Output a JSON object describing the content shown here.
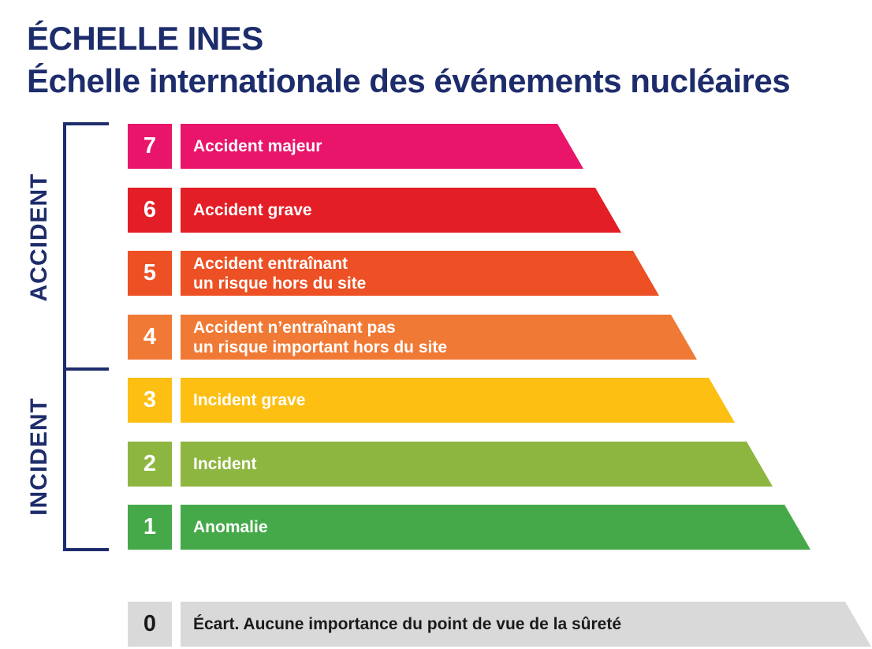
{
  "title": {
    "line1": "ÉCHELLE INES",
    "line2": "Échelle internationale des événements nucléaires"
  },
  "groups": {
    "accident": "ACCIDENT",
    "incident": "INCIDENT"
  },
  "levels": [
    {
      "number": "7",
      "line1": "Accident majeur",
      "line2": "",
      "color": "#e8156b"
    },
    {
      "number": "6",
      "line1": "Accident grave",
      "line2": "",
      "color": "#e41e26"
    },
    {
      "number": "5",
      "line1": "Accident entraînant",
      "line2": "un risque hors du site",
      "color": "#ec5024"
    },
    {
      "number": "4",
      "line1": "Accident n’entraînant pas",
      "line2": "un risque important hors du site",
      "color": "#f07a35"
    },
    {
      "number": "3",
      "line1": "Incident grave",
      "line2": "",
      "color": "#fcbf12"
    },
    {
      "number": "2",
      "line1": "Incident",
      "line2": "",
      "color": "#8db640"
    },
    {
      "number": "1",
      "line1": "Anomalie",
      "line2": "",
      "color": "#45a94a"
    },
    {
      "number": "0",
      "line1": "Écart. Aucune importance du point de vue de la sûreté",
      "line2": "",
      "color": "#d9d9d9"
    }
  ],
  "colors": {
    "title": "#1d2c6b"
  }
}
